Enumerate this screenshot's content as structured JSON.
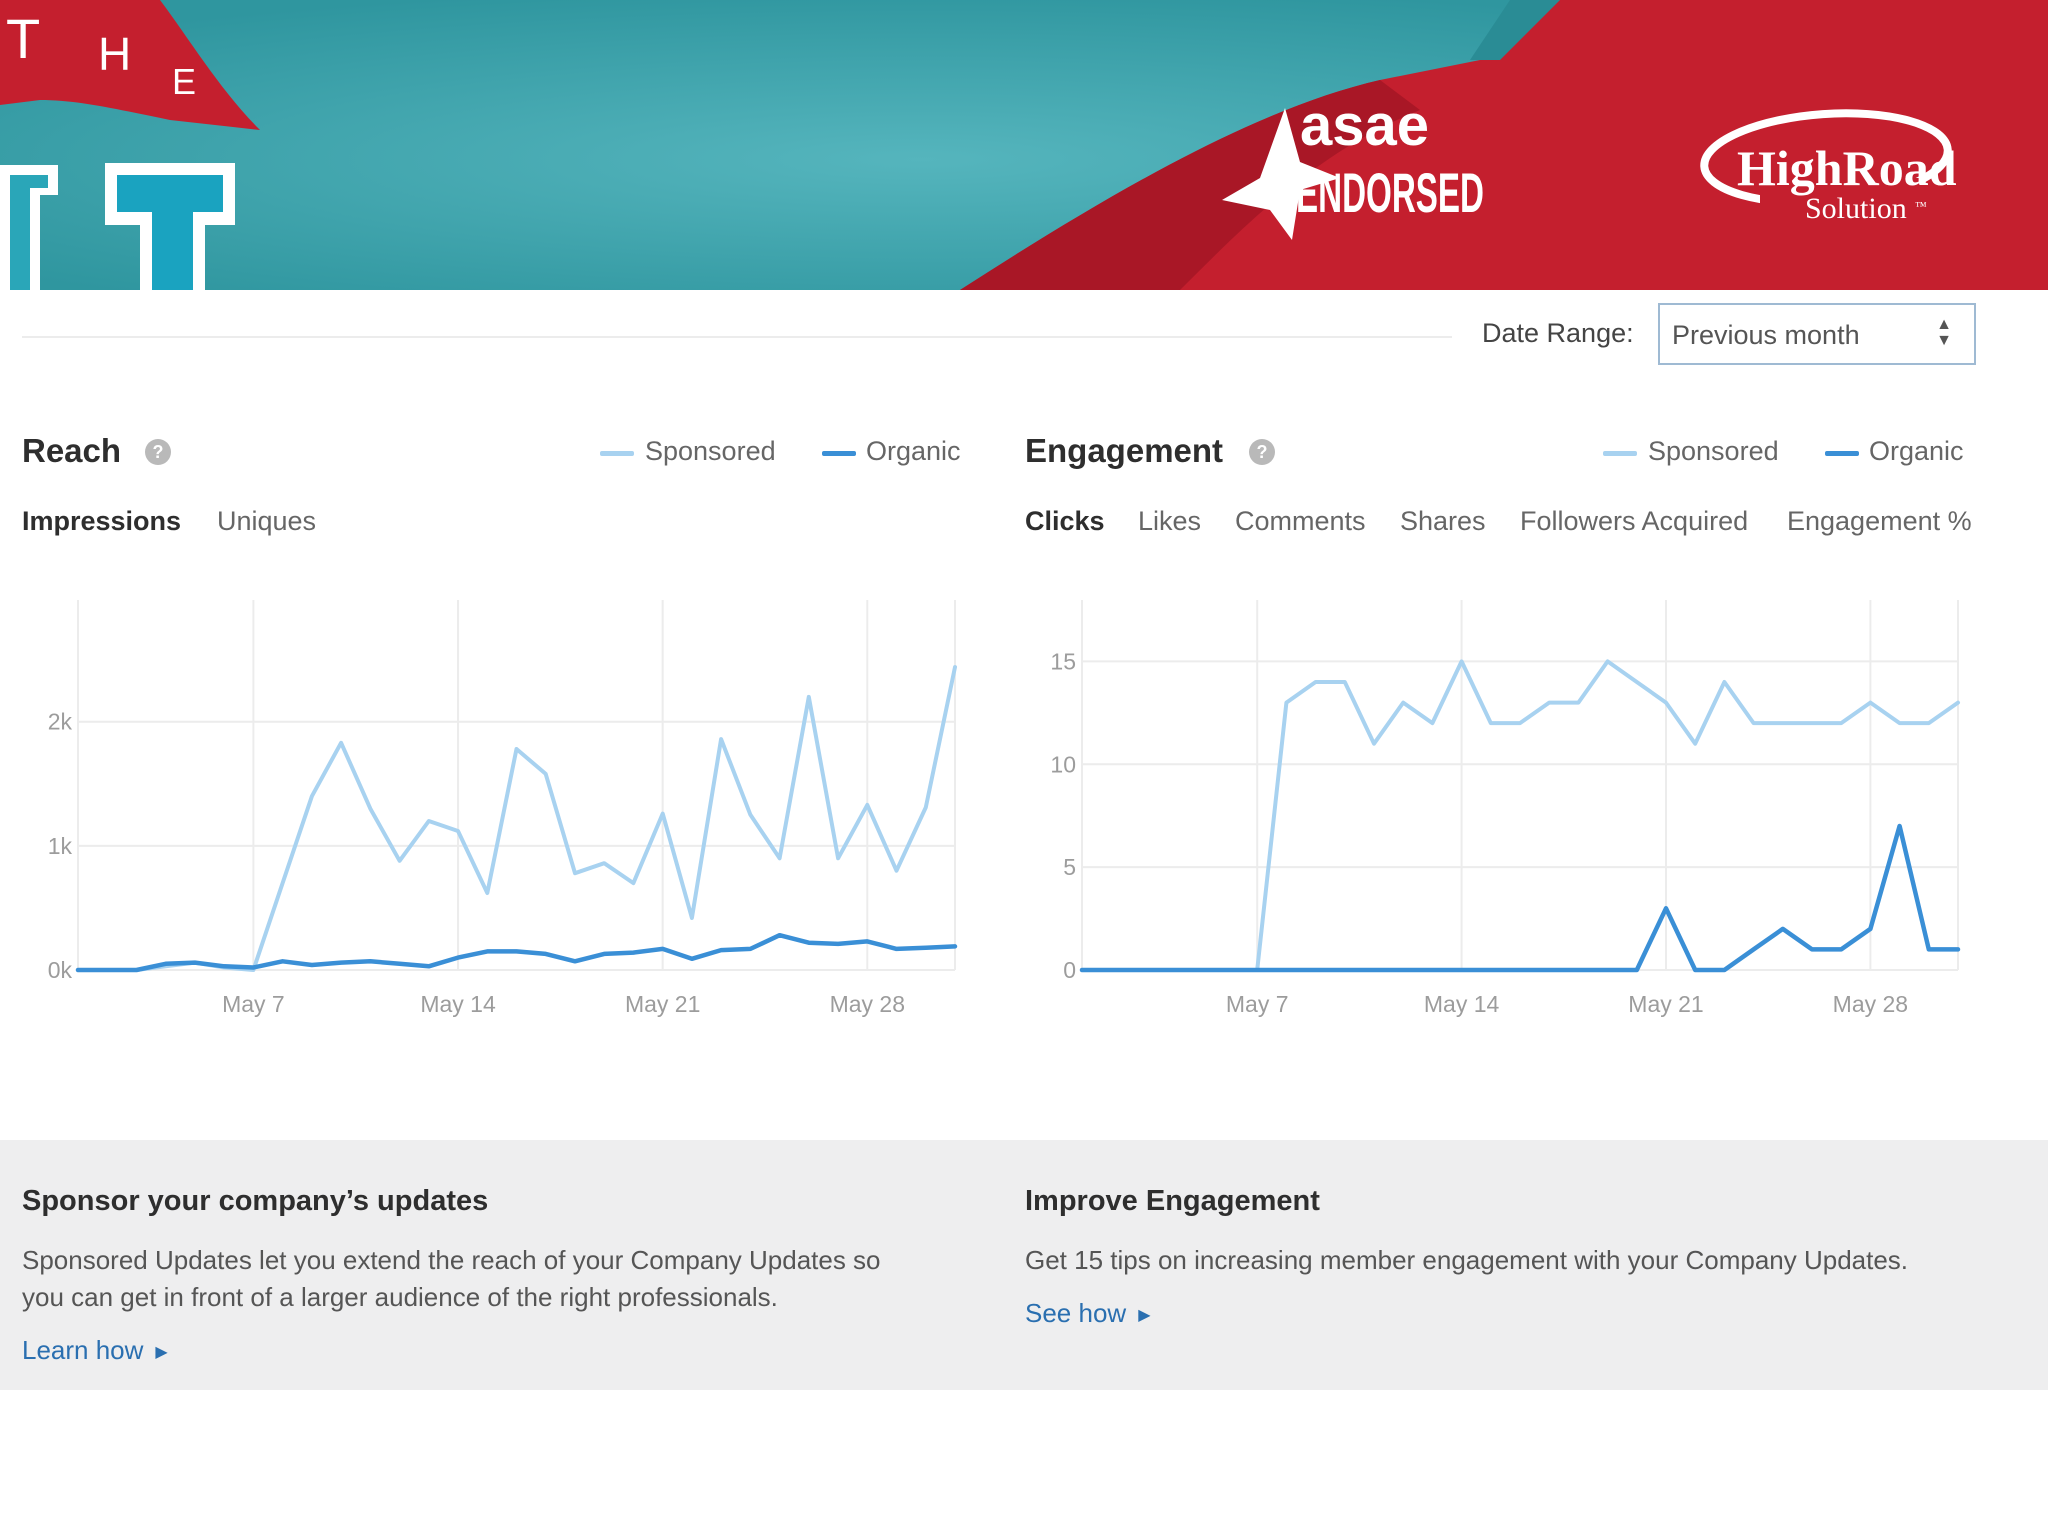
{
  "banner": {
    "the_letters": [
      "T",
      "H",
      "E"
    ],
    "asae_label": "asae",
    "endorsed_label": "ENDORSED",
    "highroad_label": "HighRoad",
    "solution_label": "Solution",
    "trademark": "™"
  },
  "date_range": {
    "label": "Date Range:",
    "selected": "Previous month",
    "arrows_icon": "sort-arrows-icon"
  },
  "reach": {
    "title": "Reach",
    "help_icon": "?",
    "legend": {
      "sponsored": "Sponsored",
      "organic": "Organic"
    },
    "tabs": [
      {
        "label": "Impressions",
        "active": true
      },
      {
        "label": "Uniques",
        "active": false
      }
    ]
  },
  "engagement": {
    "title": "Engagement",
    "help_icon": "?",
    "legend": {
      "sponsored": "Sponsored",
      "organic": "Organic"
    },
    "tabs": [
      {
        "label": "Clicks",
        "active": true
      },
      {
        "label": "Likes",
        "active": false
      },
      {
        "label": "Comments",
        "active": false
      },
      {
        "label": "Shares",
        "active": false
      },
      {
        "label": "Followers Acquired",
        "active": false
      },
      {
        "label": "Engagement %",
        "active": false
      }
    ]
  },
  "chart_data": [
    {
      "type": "line",
      "title": "Reach",
      "x_start": "May 1",
      "x_ticks": [
        "May 7",
        "May 14",
        "May 21",
        "May 28"
      ],
      "y_ticks": [
        "0k",
        "1k",
        "2k"
      ],
      "ylim": [
        0,
        2900
      ],
      "colors": {
        "Sponsored": "#a8d2f0",
        "Organic": "#3a8fd6"
      },
      "series": [
        {
          "name": "Sponsored",
          "values": [
            0,
            0,
            0,
            30,
            60,
            20,
            0,
            700,
            1400,
            1830,
            1300,
            880,
            1200,
            1120,
            620,
            1780,
            1580,
            780,
            860,
            700,
            1260,
            420,
            1860,
            1250,
            900,
            2200,
            900,
            1330,
            800,
            1310,
            2440
          ]
        },
        {
          "name": "Organic",
          "values": [
            0,
            0,
            0,
            50,
            60,
            30,
            20,
            70,
            40,
            60,
            70,
            50,
            30,
            100,
            150,
            150,
            130,
            70,
            130,
            140,
            170,
            90,
            160,
            170,
            280,
            220,
            210,
            230,
            170,
            180,
            190
          ]
        }
      ]
    },
    {
      "type": "line",
      "title": "Engagement",
      "x_start": "May 1",
      "x_ticks": [
        "May 7",
        "May 14",
        "May 21",
        "May 28"
      ],
      "y_ticks": [
        "0",
        "5",
        "10",
        "15"
      ],
      "ylim": [
        0,
        17.5
      ],
      "colors": {
        "Sponsored": "#a8d2f0",
        "Organic": "#3a8fd6"
      },
      "series": [
        {
          "name": "Sponsored",
          "values": [
            0,
            0,
            0,
            0,
            0,
            0,
            0,
            13,
            14,
            14,
            11,
            13,
            12,
            15,
            12,
            12,
            13,
            13,
            15,
            14,
            13,
            11,
            14,
            12,
            12,
            12,
            12,
            13,
            12,
            12,
            13
          ]
        },
        {
          "name": "Organic",
          "values": [
            0,
            0,
            0,
            0,
            0,
            0,
            0,
            0,
            0,
            0,
            0,
            0,
            0,
            0,
            0,
            0,
            0,
            0,
            0,
            0,
            3,
            0,
            0,
            1,
            2,
            1,
            1,
            2,
            7,
            1,
            1
          ]
        }
      ]
    }
  ],
  "promo": {
    "left": {
      "title": "Sponsor your company’s updates",
      "line1": "Sponsored Updates let you extend the reach of your Company Updates so",
      "line2": "you can get in front of a larger audience of the right professionals.",
      "link": "Learn how",
      "caret_icon": "caret-right-icon"
    },
    "right": {
      "title": "Improve Engagement",
      "line1": "Get 15 tips on increasing member engagement with your Company Updates.",
      "link": "See how",
      "caret_icon": "caret-right-icon"
    }
  }
}
